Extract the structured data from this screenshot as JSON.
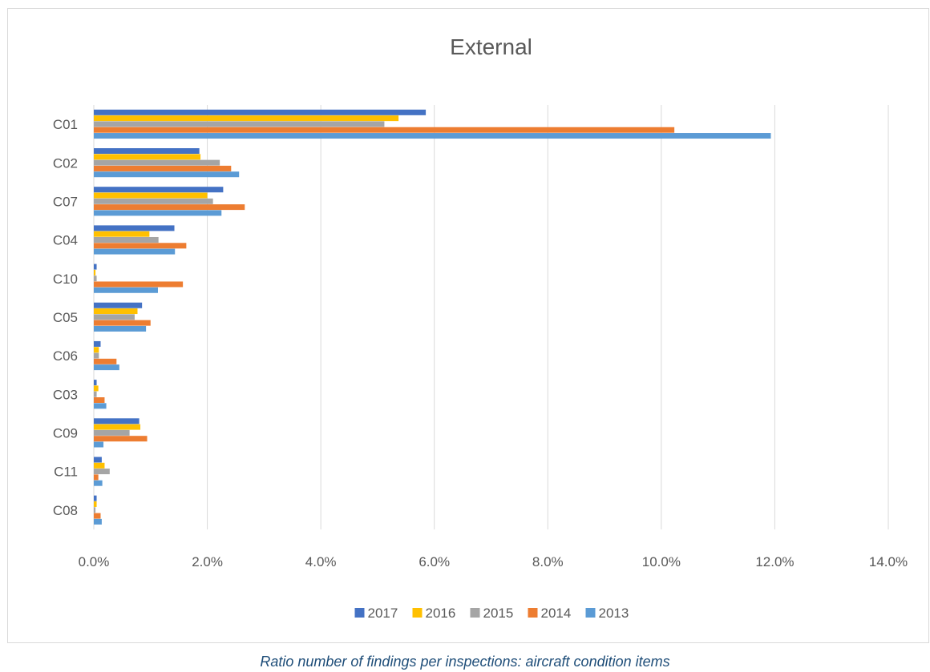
{
  "chart_data": {
    "type": "bar",
    "orientation": "horizontal",
    "title": "External",
    "xlabel": "",
    "ylabel": "",
    "xlim": [
      0,
      14
    ],
    "x_ticks": [
      0,
      2,
      4,
      6,
      8,
      10,
      12,
      14
    ],
    "x_tick_labels": [
      "0.0%",
      "2.0%",
      "4.0%",
      "6.0%",
      "8.0%",
      "10.0%",
      "12.0%",
      "14.0%"
    ],
    "value_unit": "%",
    "grid": "vertical",
    "legend_position": "bottom",
    "categories": [
      "C01",
      "C02",
      "C07",
      "C04",
      "C10",
      "C05",
      "C06",
      "C03",
      "C09",
      "C11",
      "C08"
    ],
    "series": [
      {
        "name": "2017",
        "color": "#4472c4",
        "values": [
          5.85,
          1.86,
          2.28,
          1.42,
          0.05,
          0.85,
          0.12,
          0.05,
          0.8,
          0.14,
          0.05
        ]
      },
      {
        "name": "2016",
        "color": "#ffc000",
        "values": [
          5.37,
          1.88,
          2.0,
          0.98,
          0.03,
          0.77,
          0.09,
          0.08,
          0.82,
          0.19,
          0.05
        ]
      },
      {
        "name": "2015",
        "color": "#a5a5a5",
        "values": [
          5.12,
          2.22,
          2.1,
          1.14,
          0.05,
          0.72,
          0.09,
          0.05,
          0.63,
          0.28,
          0.03
        ]
      },
      {
        "name": "2014",
        "color": "#ed7d31",
        "values": [
          10.23,
          2.42,
          2.66,
          1.63,
          1.57,
          1.0,
          0.4,
          0.19,
          0.94,
          0.08,
          0.12
        ]
      },
      {
        "name": "2013",
        "color": "#5b9bd5",
        "values": [
          11.93,
          2.56,
          2.25,
          1.43,
          1.13,
          0.92,
          0.45,
          0.22,
          0.17,
          0.15,
          0.14
        ]
      }
    ]
  },
  "caption": "Ratio number of findings per inspections: aircraft condition items"
}
